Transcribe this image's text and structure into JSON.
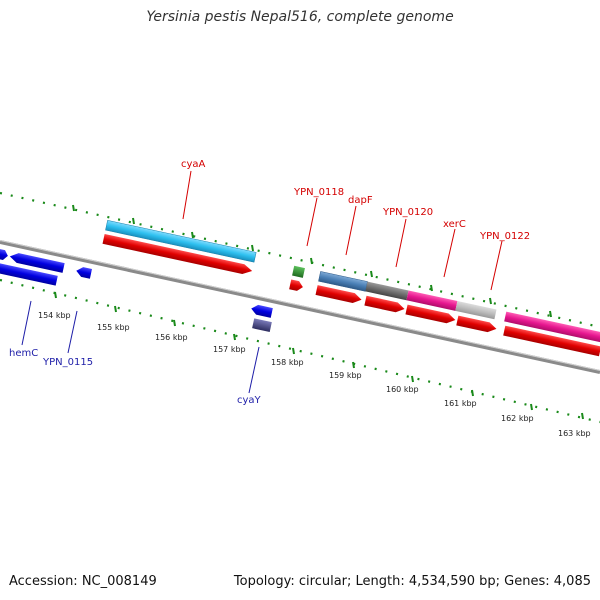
{
  "title": "Yersinia pestis Nepal516, complete genome",
  "accession": "Accession: NC_008149",
  "summary": "Topology: circular; Length: 4,534,590 bp; Genes: 4,085",
  "ticks": [
    {
      "label": "154 kbp"
    },
    {
      "label": "155 kbp"
    },
    {
      "label": "156 kbp"
    },
    {
      "label": "157 kbp"
    },
    {
      "label": "158 kbp"
    },
    {
      "label": "159 kbp"
    },
    {
      "label": "160 kbp"
    },
    {
      "label": "161 kbp"
    },
    {
      "label": "162 kbp"
    },
    {
      "label": "163 kbp"
    }
  ],
  "genes": {
    "cyaA": "cyaA",
    "YPN_0118": "YPN_0118",
    "dapF": "dapF",
    "YPN_0120": "YPN_0120",
    "xerC": "xerC",
    "YPN_0122": "YPN_0122",
    "hemC": "hemC",
    "YPN_0115": "YPN_0115",
    "cyaY": "cyaY"
  },
  "colors": {
    "backbone": "#8a8a8a",
    "cds": "#e00000",
    "blue_gene": "#0000e0",
    "cyan_gene": "#2ec0ef",
    "steel_gene": "#4a7fb5",
    "dark_gray_gene": "#6e6e6e",
    "magenta_gene": "#e6168f",
    "light_gray_gene": "#bdbdbd",
    "green_gene": "#2d8a2d",
    "purple_gene": "#4a4a8a",
    "tick": "#1a8a1a"
  }
}
